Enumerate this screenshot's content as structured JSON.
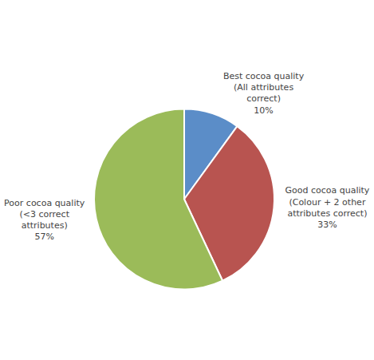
{
  "chart_data": {
    "type": "pie",
    "categories": [
      "Best cocoa quality\n(All attributes\ncorrect)\n10%",
      "Good cocoa quality\n(Colour + 2 other\nattributes correct)\n33%",
      "Poor cocoa quality\n(<3 correct\nattributes)\n57%"
    ],
    "values": [
      10,
      33,
      57
    ],
    "colors": [
      "#5B8DC8",
      "#B85450",
      "#9BBB59"
    ]
  }
}
